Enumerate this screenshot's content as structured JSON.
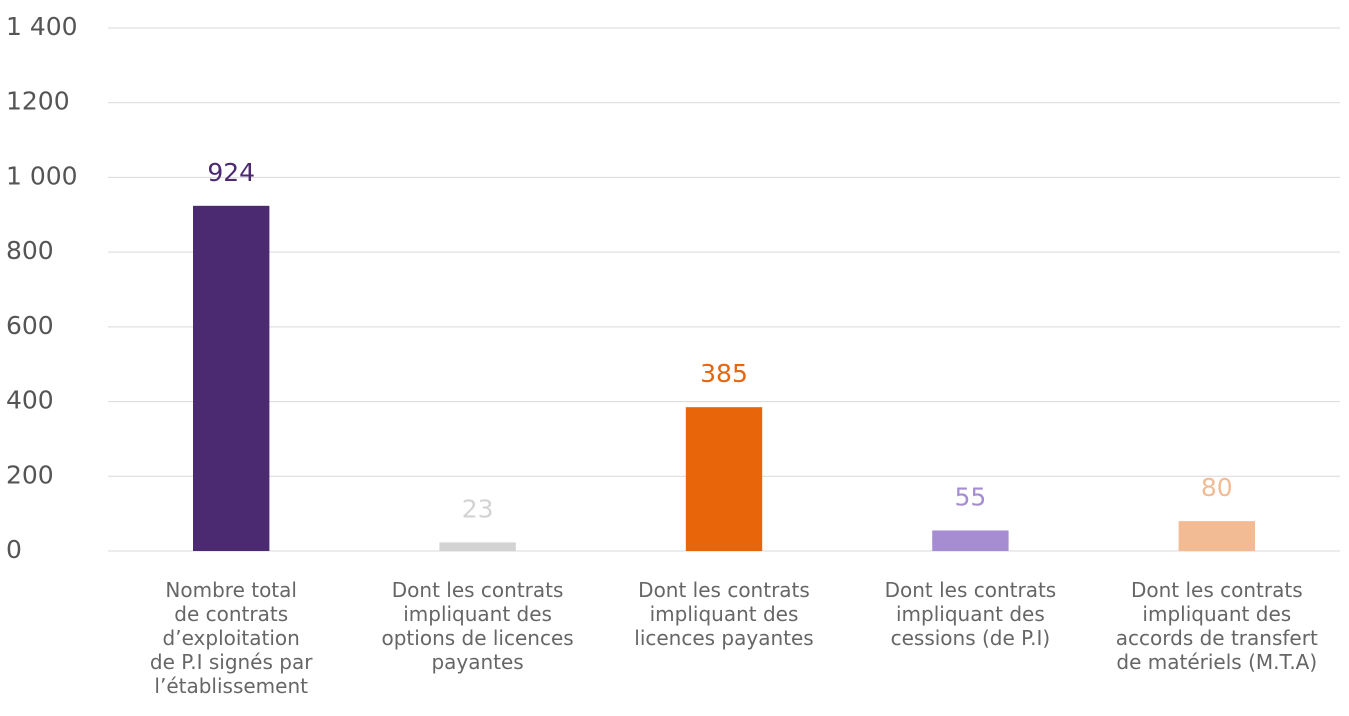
{
  "chart_data": {
    "type": "bar",
    "categories": [
      "Nombre total\nde contrats\nd’exploitation\nde P.I signés par\nl’établissement",
      "Dont les contrats\nimpliquant des\noptions de licences\npayantes",
      "Dont les contrats\nimpliquant des\nlicences payantes",
      "Dont les contrats\nimpliquant des\ncessions (de P.I)",
      "Dont les contrats\nimpliquant des\naccords de transfert\nde matériels (M.T.A)"
    ],
    "values": [
      924,
      23,
      385,
      55,
      80
    ],
    "colors": [
      "#4b2a72",
      "#d3d3d3",
      "#e8650a",
      "#a68dd2",
      "#f2bb94"
    ],
    "ylim": [
      0,
      1400
    ],
    "yticks": [
      0,
      200,
      400,
      600,
      800,
      {
        "value": 1000,
        "label": "1 000"
      },
      1200,
      {
        "value": 1400,
        "label": "1 400"
      }
    ],
    "grid": true
  }
}
